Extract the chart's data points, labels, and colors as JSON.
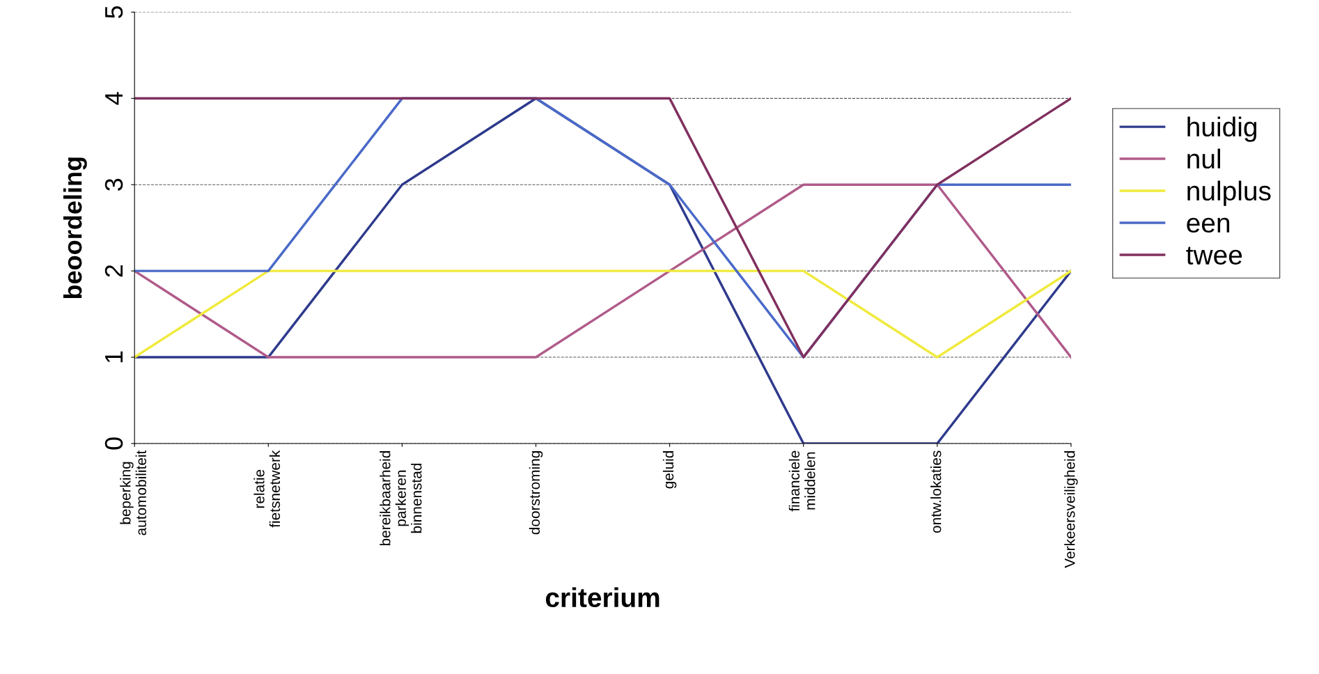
{
  "chart_data": {
    "type": "line",
    "xlabel": "criterium",
    "ylabel": "beoordeling",
    "categories": [
      "beperking\nautomobiliteit",
      "relatie\nfietsnetwerk",
      "bereikbaarheid\nparkeren\nbinnenstad",
      "doorstroming",
      "geluid",
      "financiele\nmiddelen",
      "ontw.lokaties",
      "Verkeersveiligheid"
    ],
    "series": [
      {
        "name": "huidig",
        "color": "#2e3a8c",
        "values": [
          1,
          1,
          3,
          4,
          3,
          0,
          0,
          2
        ]
      },
      {
        "name": "nul",
        "color": "#b05a8a",
        "values": [
          2,
          1,
          1,
          1,
          2,
          3,
          3,
          1
        ]
      },
      {
        "name": "nulplus",
        "color": "#f0ea3c",
        "values": [
          1,
          2,
          2,
          2,
          2,
          2,
          1,
          2
        ]
      },
      {
        "name": "een",
        "color": "#4a6ac8",
        "values": [
          2,
          2,
          4,
          4,
          3,
          1,
          3,
          3
        ]
      },
      {
        "name": "twee",
        "color": "#80305f",
        "values": [
          4,
          4,
          4,
          4,
          4,
          1,
          3,
          4
        ]
      }
    ],
    "ylim": [
      0,
      5
    ],
    "yticks": [
      0,
      1,
      2,
      3,
      4,
      5
    ],
    "grid": "y",
    "legend": "right",
    "marker": "none",
    "line_style": "solid"
  }
}
